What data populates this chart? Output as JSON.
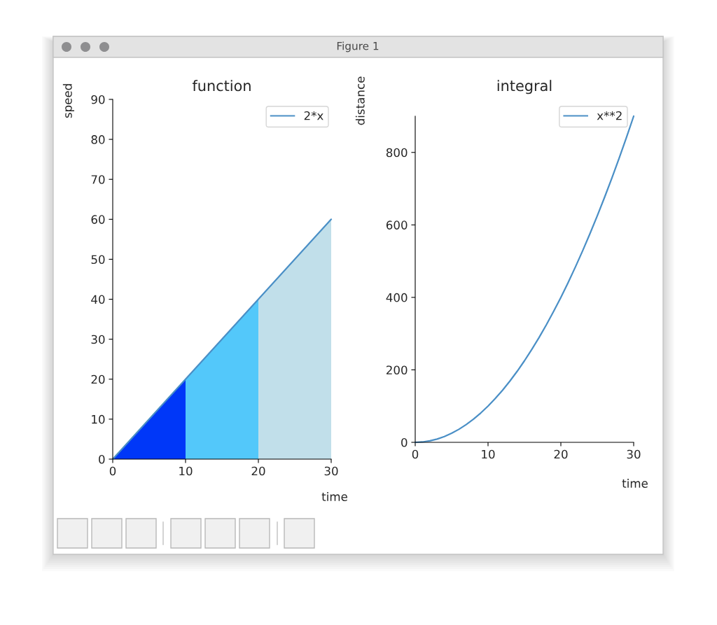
{
  "chart_data": [
    {
      "type": "area",
      "title": "function",
      "xlabel": "time",
      "ylabel": "speed",
      "xlim": [
        0,
        30
      ],
      "ylim": [
        0,
        90
      ],
      "xticks": [
        0,
        10,
        20,
        30
      ],
      "yticks": [
        0,
        10,
        20,
        30,
        40,
        50,
        60,
        70,
        80,
        90
      ],
      "legend": "top right",
      "annotations": [
        "Figure 1"
      ],
      "series": [
        {
          "x": [
            0,
            10
          ],
          "values": [
            0,
            20
          ],
          "color": "#0037f8"
        },
        {
          "x": [
            10,
            20
          ],
          "values": [
            20,
            40
          ],
          "color": "#53c8fa"
        },
        {
          "x": [
            20,
            30
          ],
          "values": [
            40,
            60
          ],
          "color": "#c1dfea"
        },
        {
          "type": "line",
          "name": "2*x",
          "x": [
            0,
            10,
            20,
            30
          ],
          "values": [
            0,
            20,
            40,
            60
          ],
          "color": "#4a8fc6"
        }
      ]
    },
    {
      "type": "line",
      "title": "integral",
      "xlabel": "time",
      "ylabel": "distance",
      "xlim": [
        0,
        30
      ],
      "ylim": [
        0,
        900
      ],
      "xticks": [
        0,
        10,
        20,
        30
      ],
      "yticks": [
        0,
        200,
        400,
        600,
        800
      ],
      "legend": "top right",
      "series": [
        {
          "name": "x**2",
          "x": [
            0,
            1,
            2,
            3,
            4,
            5,
            6,
            7,
            8,
            9,
            10,
            11,
            12,
            13,
            14,
            15,
            16,
            17,
            18,
            19,
            20,
            21,
            22,
            23,
            24,
            25,
            26,
            27,
            28,
            29,
            30
          ],
          "values": [
            0,
            1,
            4,
            9,
            16,
            25,
            36,
            49,
            64,
            81,
            100,
            121,
            144,
            169,
            196,
            225,
            256,
            289,
            324,
            361,
            400,
            441,
            484,
            529,
            576,
            625,
            676,
            729,
            784,
            841,
            900
          ],
          "color": "#4a8fc6"
        }
      ]
    }
  ]
}
